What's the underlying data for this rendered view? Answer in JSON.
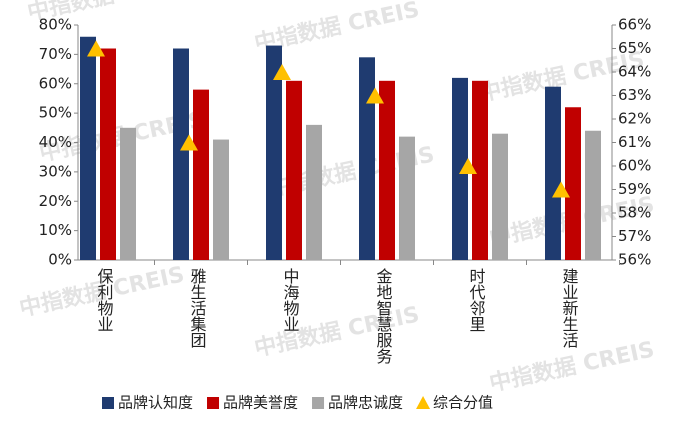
{
  "chart_data": {
    "type": "bar",
    "watermark": "中指数据 CREIS",
    "categories": [
      "保利物业",
      "雅生活集团",
      "中海物业",
      "金地智慧服务",
      "时代邻里",
      "建业新生活"
    ],
    "series": [
      {
        "name": "品牌认知度",
        "color": "#1f3b70",
        "values": [
          76,
          72,
          73,
          69,
          62,
          59
        ]
      },
      {
        "name": "品牌美誉度",
        "color": "#c00000",
        "values": [
          72,
          58,
          61,
          61,
          61,
          52
        ]
      },
      {
        "name": "品牌忠诚度",
        "color": "#a6a6a6",
        "values": [
          45,
          41,
          46,
          42,
          43,
          44
        ]
      },
      {
        "name": "综合分值",
        "color": "#ffc000",
        "type": "triangle",
        "axis": "y2",
        "values": [
          65,
          61,
          64,
          63,
          60,
          59
        ]
      }
    ],
    "ylim": [
      0,
      80
    ],
    "yticks": [
      {
        "value": 0,
        "label": "0%"
      },
      {
        "value": 10,
        "label": "10%"
      },
      {
        "value": 20,
        "label": "20%"
      },
      {
        "value": 30,
        "label": "30%"
      },
      {
        "value": 40,
        "label": "40%"
      },
      {
        "value": 50,
        "label": "50%"
      },
      {
        "value": 60,
        "label": "60%"
      },
      {
        "value": 70,
        "label": "70%"
      },
      {
        "value": 80,
        "label": "80%"
      }
    ],
    "y2lim": [
      56,
      66
    ],
    "y2ticks": [
      {
        "value": 56,
        "label": "56%"
      },
      {
        "value": 57,
        "label": "57%"
      },
      {
        "value": 58,
        "label": "58%"
      },
      {
        "value": 59,
        "label": "59%"
      },
      {
        "value": 60,
        "label": "60%"
      },
      {
        "value": 61,
        "label": "61%"
      },
      {
        "value": 62,
        "label": "62%"
      },
      {
        "value": 63,
        "label": "63%"
      },
      {
        "value": 64,
        "label": "64%"
      },
      {
        "value": 65,
        "label": "65%"
      },
      {
        "value": 66,
        "label": "66%"
      }
    ],
    "legend": "bottom"
  }
}
